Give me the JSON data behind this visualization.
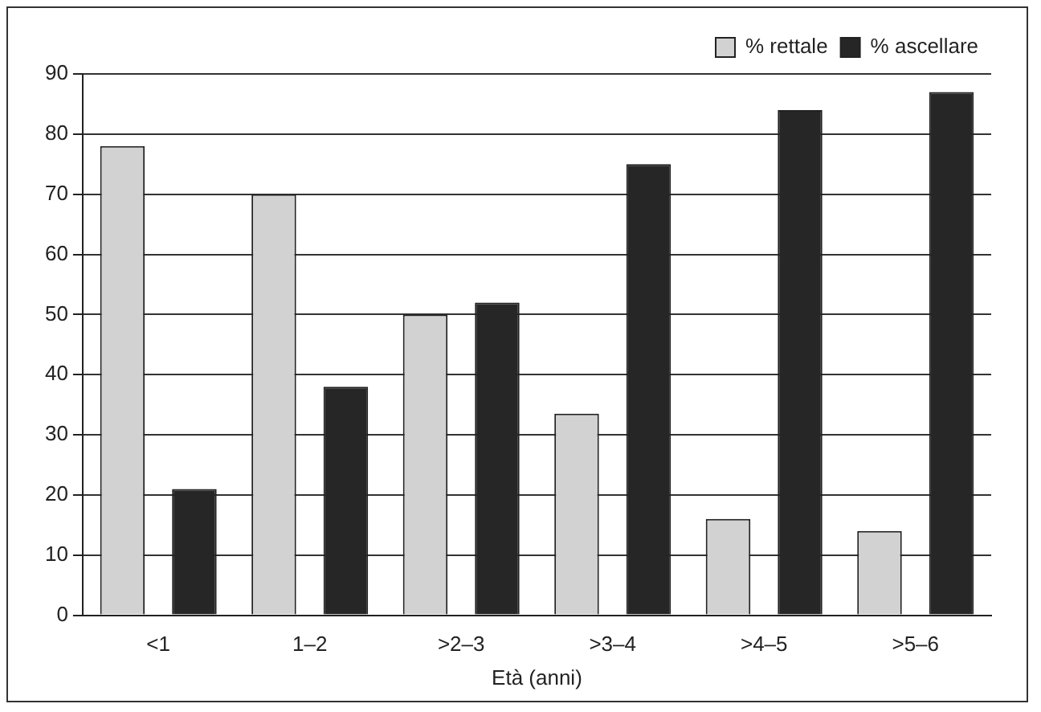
{
  "chart_data": {
    "type": "bar",
    "xlabel": "Età (anni)",
    "categories": [
      "<1",
      "1–2",
      ">2–3",
      ">3–4",
      ">4–5",
      ">5–6"
    ],
    "series": [
      {
        "name": "% rettale",
        "color": "#d2d2d2",
        "values": [
          78,
          70,
          50,
          33.5,
          16,
          14
        ]
      },
      {
        "name": "% ascellare",
        "color": "#262626",
        "values": [
          21,
          38,
          52,
          75,
          84,
          87
        ]
      }
    ],
    "ylim": [
      0,
      90
    ],
    "yticks": [
      0,
      10,
      20,
      30,
      40,
      50,
      60,
      70,
      80,
      90
    ],
    "grid": "y",
    "legend": "top right"
  }
}
